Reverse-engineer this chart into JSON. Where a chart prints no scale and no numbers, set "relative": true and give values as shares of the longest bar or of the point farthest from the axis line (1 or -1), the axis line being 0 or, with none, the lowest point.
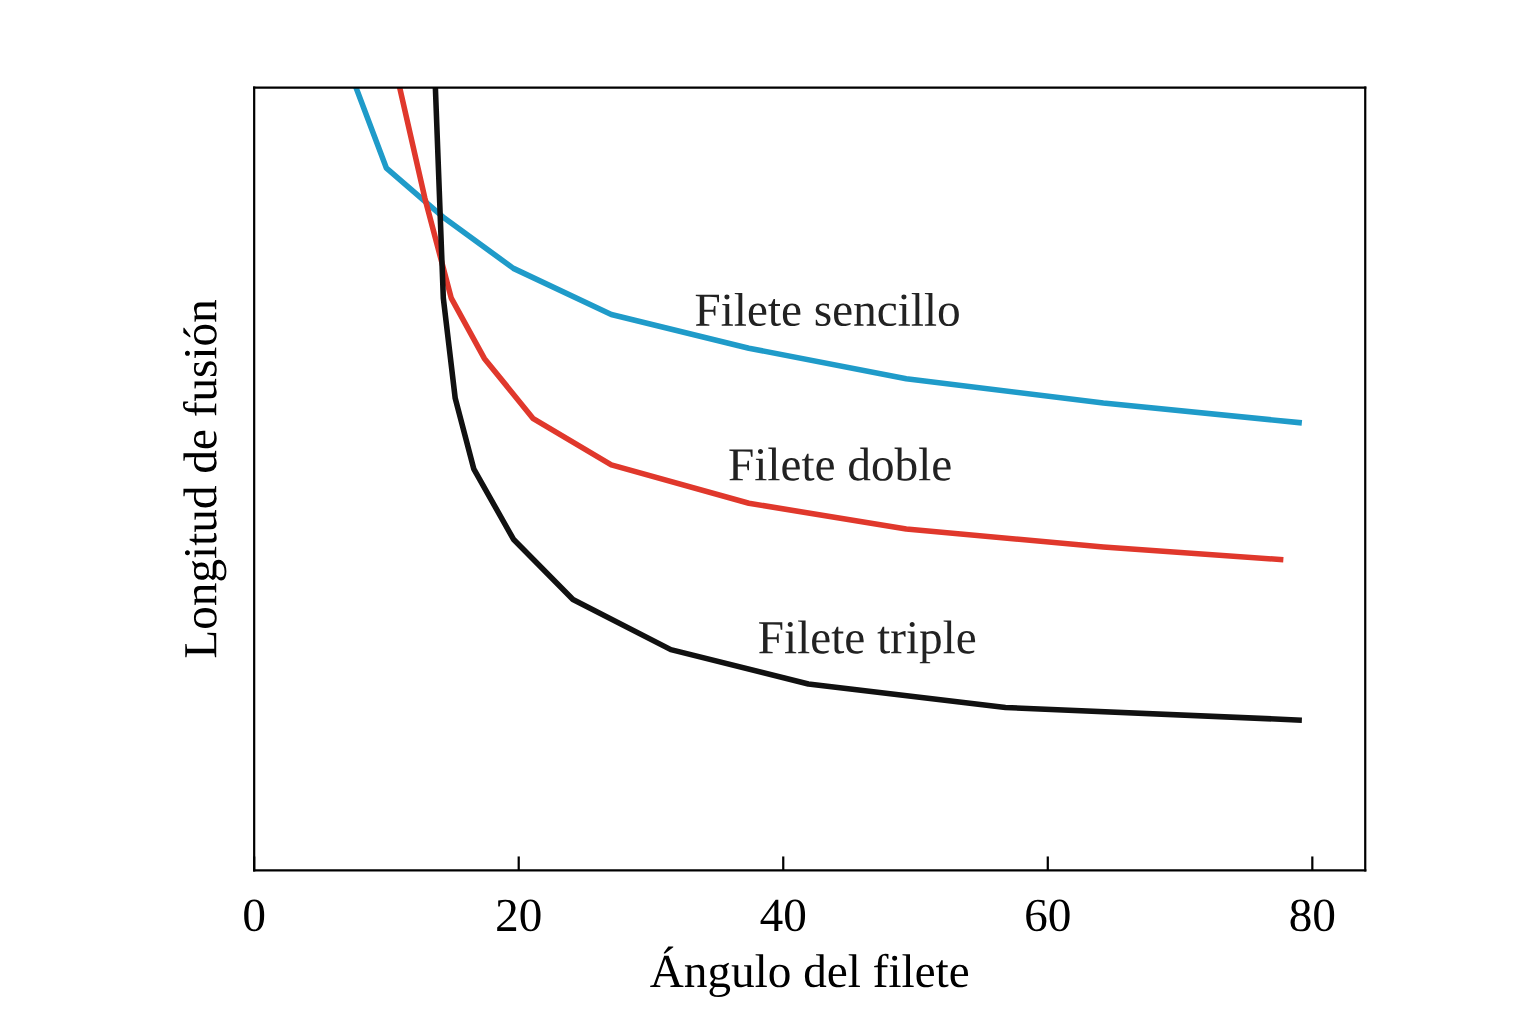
{
  "chart_data": {
    "type": "line",
    "xlabel": "Ángulo del filete",
    "ylabel": "Longitud de fusión",
    "relative": true,
    "xlim": [
      0,
      84
    ],
    "xticks": [
      0,
      20,
      40,
      60,
      80
    ],
    "tick_labels": "x",
    "grid": false,
    "legend": false,
    "marker": "none",
    "line_style": "solid",
    "series": [
      {
        "name": "Filete sencillo",
        "color": "#1f9bc9",
        "x": [
          7.7,
          10,
          14.4,
          19.6,
          27,
          37.4,
          49.3,
          64.2,
          79
        ],
        "values": [
          1,
          0.897,
          0.833,
          0.769,
          0.71,
          0.667,
          0.628,
          0.597,
          0.572
        ]
      },
      {
        "name": "Filete doble",
        "color": "#e0382c",
        "x": [
          11,
          12.9,
          14.9,
          17.4,
          21.1,
          27,
          37.4,
          49.3,
          64.2,
          77.6
        ],
        "values": [
          1,
          0.859,
          0.731,
          0.654,
          0.577,
          0.518,
          0.469,
          0.436,
          0.413,
          0.397
        ]
      },
      {
        "name": "Filete triple",
        "color": "#111111",
        "x": [
          13.7,
          14.3,
          15.2,
          16.6,
          19.6,
          24.1,
          31.5,
          41.9,
          56.8,
          79
        ],
        "values": [
          1,
          0.731,
          0.603,
          0.513,
          0.423,
          0.346,
          0.282,
          0.238,
          0.208,
          0.192
        ]
      }
    ]
  }
}
